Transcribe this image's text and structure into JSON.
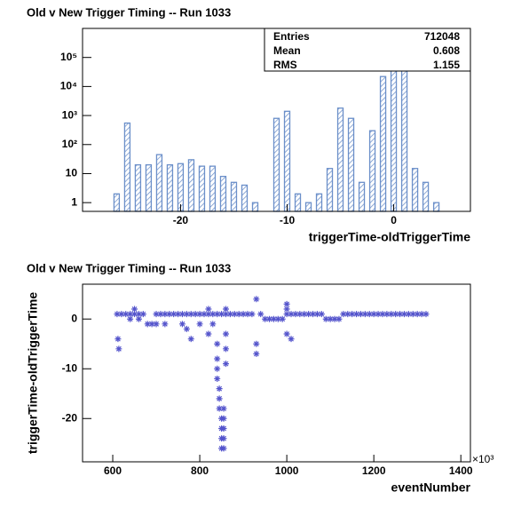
{
  "chart_data": [
    {
      "type": "bar",
      "title": "Old v New Trigger Timing -- Run 1033",
      "x_label": "triggerTime-oldTriggerTime",
      "x": [
        -26,
        -25,
        -24,
        -23,
        -22,
        -21,
        -20,
        -19,
        -18,
        -17,
        -16,
        -15,
        -14,
        -13,
        -11,
        -10,
        -9,
        -8,
        -7,
        -6,
        -5,
        -4,
        -3,
        -2,
        -1,
        0,
        1,
        2,
        3,
        4
      ],
      "values": [
        2,
        550,
        20,
        20,
        45,
        20,
        22,
        30,
        18,
        18,
        8,
        5,
        4,
        1,
        800,
        1400,
        2,
        1,
        2,
        15,
        1800,
        800,
        5,
        300,
        22000,
        180000,
        500000,
        15,
        5,
        1
      ],
      "color": "#6b8fc9",
      "log_y": true,
      "xlim": [
        -29.2,
        7.2
      ],
      "xticks": [
        -20,
        -10,
        0
      ],
      "ylim": [
        0.5,
        1000000
      ],
      "yticks": [
        1,
        10,
        {
          "value": 100,
          "label": "10²"
        },
        {
          "value": 1000,
          "label": "10³"
        },
        {
          "value": 10000,
          "label": "10⁴"
        },
        {
          "value": 100000,
          "label": "10⁵"
        }
      ],
      "stats": [
        {
          "label": "Entries",
          "value": 712048
        },
        {
          "label": "Mean",
          "value": 0.608
        },
        {
          "label": "RMS",
          "value": 1.155
        }
      ]
    },
    {
      "type": "scatter",
      "title": "Old v New Trigger Timing -- Run 1033",
      "x_label": "eventNumber",
      "y_label": "triggerTime-oldTriggerTime",
      "x_multiplier": "×10³",
      "color": "#5555cc",
      "x": [
        610,
        620,
        630,
        640,
        650,
        660,
        670,
        700,
        710,
        720,
        730,
        740,
        750,
        760,
        770,
        780,
        790,
        800,
        810,
        820,
        830,
        840,
        850,
        860,
        870,
        880,
        890,
        900,
        910,
        920,
        940,
        1000,
        1010,
        1020,
        1030,
        1040,
        1050,
        1060,
        1070,
        1080,
        1130,
        1140,
        1150,
        1160,
        1170,
        1180,
        1190,
        1200,
        1210,
        1220,
        1230,
        1240,
        1250,
        1260,
        1270,
        1280,
        1290,
        1300,
        1310,
        1320,
        950,
        960,
        970,
        980,
        990,
        1090,
        1100,
        1110,
        1120,
        640,
        660,
        680,
        690,
        700,
        720,
        760,
        800,
        830,
        650,
        820,
        860,
        1000,
        612,
        614,
        930,
        930,
        930,
        1000,
        1000,
        1010,
        770,
        780,
        820,
        840,
        840,
        840,
        840,
        845,
        845,
        845,
        850,
        850,
        850,
        850,
        855,
        855,
        855,
        855,
        855,
        860,
        860,
        860
      ],
      "y": [
        1,
        1,
        1,
        1,
        1,
        1,
        1,
        1,
        1,
        1,
        1,
        1,
        1,
        1,
        1,
        1,
        1,
        1,
        1,
        1,
        1,
        1,
        1,
        1,
        1,
        1,
        1,
        1,
        1,
        1,
        1,
        1,
        1,
        1,
        1,
        1,
        1,
        1,
        1,
        1,
        1,
        1,
        1,
        1,
        1,
        1,
        1,
        1,
        1,
        1,
        1,
        1,
        1,
        1,
        1,
        1,
        1,
        1,
        1,
        1,
        0,
        0,
        0,
        0,
        0,
        0,
        0,
        0,
        0,
        0,
        0,
        -1,
        -1,
        -1,
        -1,
        -1,
        -1,
        -1,
        2,
        2,
        2,
        2,
        -4,
        -6,
        -5,
        -7,
        4,
        3,
        -3,
        -4,
        -2,
        -4,
        -3,
        -5,
        -8,
        -10,
        -12,
        -14,
        -16,
        -18,
        -20,
        -22,
        -24,
        -26,
        -18,
        -20,
        -22,
        -24,
        -26,
        -3,
        -6,
        -9
      ],
      "xlim": [
        530.6,
        1422
      ],
      "xticks": [
        600,
        800,
        1000,
        1200,
        1400
      ],
      "ylim": [
        -28.7,
        7
      ],
      "yticks": [
        -20,
        -10,
        0
      ]
    }
  ]
}
